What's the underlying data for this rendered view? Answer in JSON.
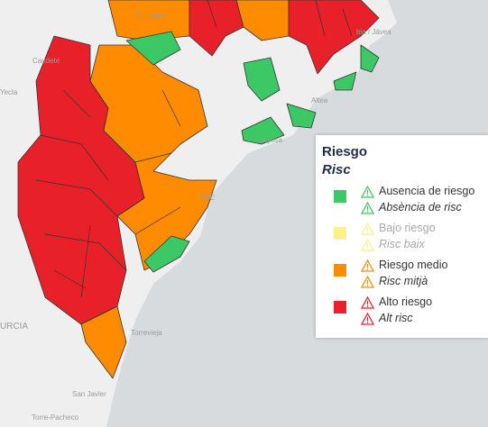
{
  "places": [
    "Ontinyent",
    "Caudete",
    "Yecla",
    "Altea",
    "joyosa",
    "NTE",
    "bia / Jávea",
    "Torrevieja",
    "URCIA",
    "San Javier",
    "Torre-Pacheco"
  ],
  "legend": {
    "title": "Riesgo",
    "subtitle": "Risc",
    "items": [
      {
        "name": "Ausencia de riesgo",
        "name_ca": "Absència de risc",
        "color": "#3cc864"
      },
      {
        "name": "Bajo riesgo",
        "name_ca": "Risc baix",
        "color": "#fff08c"
      },
      {
        "name": "Riesgo medio",
        "name_ca": "Risc mitjà",
        "color": "#ff8c00"
      },
      {
        "name": "Alto riesgo",
        "name_ca": "Alt risc",
        "color": "#e8202a"
      }
    ]
  }
}
